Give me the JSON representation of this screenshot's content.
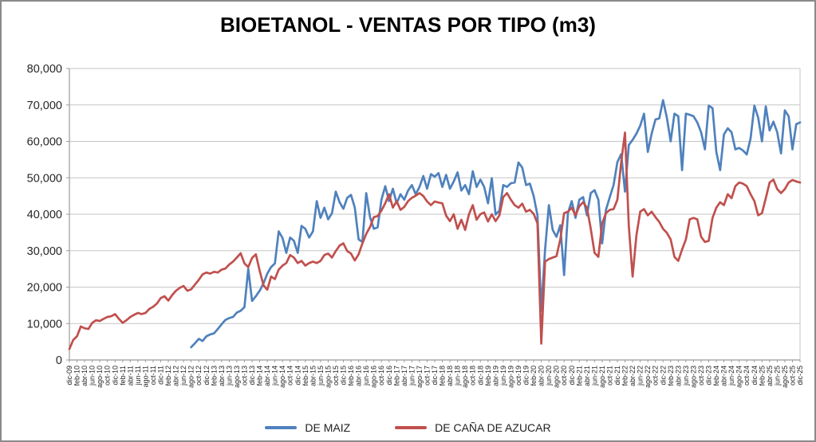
{
  "title": "BIOETANOL - VENTAS POR TIPO (m3)",
  "legend": [
    {
      "label": "DE MAIZ",
      "color": "#4F81BD"
    },
    {
      "label": "DE CAÑA DE AZUCAR",
      "color": "#C0504D"
    }
  ],
  "colors": {
    "maiz": "#4F81BD",
    "cana": "#C0504D",
    "gridline": "#C6C6C6",
    "axis": "#9B9B9B",
    "tick_text": "#262626"
  },
  "y_axis": {
    "min": 0,
    "max": 80000,
    "step": 10000,
    "tick_labels": [
      "0",
      "10,000",
      "20,000",
      "30,000",
      "40,000",
      "50,000",
      "60,000",
      "70,000",
      "80,000"
    ]
  },
  "x_axis": {
    "tick_labels": [
      "dic-09",
      "feb-10",
      "abr-10",
      "jun-10",
      "ago-10",
      "oct-10",
      "dic-10",
      "feb-11",
      "abr-11",
      "jun-11",
      "ago-11",
      "oct-11",
      "dic-11",
      "feb-12",
      "abr-12",
      "jun-12",
      "ago-12",
      "oct-12",
      "dic-12",
      "feb-13",
      "abr-13",
      "jun-13",
      "ago-13",
      "oct-13",
      "dic-13",
      "feb-14",
      "abr-14",
      "jun-14",
      "ago-14",
      "oct-14",
      "dic-14",
      "feb-15",
      "abr-15",
      "jun-15",
      "ago-15",
      "oct-15",
      "dic-15",
      "feb-16",
      "abr-16",
      "jun-16",
      "ago-16",
      "oct-16",
      "dic-16",
      "feb-17",
      "abr-17",
      "jun-17",
      "ago-17",
      "oct-17",
      "dic-17",
      "feb-18",
      "abr-18",
      "jun-18",
      "ago-18",
      "oct-18",
      "dic-18",
      "feb-19",
      "abr-19",
      "jun-19",
      "ago-19",
      "oct-19",
      "dic-19",
      "feb-20",
      "abr-20",
      "jun-20",
      "ago-20",
      "oct-20",
      "dic-20",
      "feb-21",
      "abr-21",
      "jun-21",
      "ago-21",
      "oct-21",
      "dic-21",
      "feb-22",
      "abr-22",
      "jun-22",
      "ago-22",
      "oct-22",
      "dic-22",
      "feb-23",
      "abr-23",
      "jun-23",
      "ago-23",
      "oct-23",
      "dic-23",
      "feb-24",
      "abr-24",
      "jun-24",
      "ago-24",
      "oct-24",
      "dic-24",
      "feb-25",
      "abr-25",
      "jun-25",
      "ago-25",
      "oct-25",
      "dic-25"
    ],
    "months_per_tick": 2,
    "total_months": 193
  },
  "chart_data": {
    "type": "line",
    "title": "BIOETANOL - VENTAS POR TIPO (m3)",
    "xlabel": "",
    "ylabel": "",
    "ylim": [
      0,
      80000
    ],
    "grid": true,
    "legend_position": "bottom",
    "x_start": "dic-09",
    "x_end": "dic-25",
    "x_interval": "monthly",
    "series": [
      {
        "name": "DE MAIZ",
        "color": "#4F81BD",
        "start_index": 32,
        "start_month": "ago-12",
        "values": [
          3500,
          4600,
          5800,
          5200,
          6500,
          7000,
          7300,
          8500,
          9800,
          11000,
          11500,
          11800,
          13000,
          13500,
          14500,
          25000,
          16200,
          17500,
          19000,
          21000,
          23700,
          25500,
          26500,
          35300,
          33500,
          29400,
          33600,
          32700,
          29400,
          36800,
          36000,
          33600,
          35300,
          43600,
          39000,
          41800,
          38600,
          40300,
          46200,
          43300,
          41500,
          44500,
          45300,
          41800,
          33100,
          32400,
          45800,
          39200,
          36000,
          36400,
          44000,
          47700,
          43600,
          47000,
          43000,
          45500,
          44000,
          46500,
          48000,
          45500,
          47500,
          50500,
          47000,
          51000,
          50300,
          51300,
          47500,
          50800,
          47000,
          49000,
          51500,
          46500,
          48000,
          45500,
          51800,
          47500,
          49500,
          47500,
          43000,
          49900,
          39900,
          41000,
          48000,
          47500,
          48500,
          48700,
          54200,
          52800,
          48000,
          48400,
          45000,
          39700,
          13500,
          30300,
          42500,
          35700,
          33800,
          37000,
          23300,
          40300,
          43600,
          39000,
          44000,
          44700,
          39700,
          45800,
          46600,
          44000,
          32000,
          41200,
          44700,
          48000,
          54300,
          56500,
          46200,
          59000,
          60400,
          62100,
          64300,
          67600,
          57100,
          62100,
          66000,
          66300,
          71300,
          66500,
          60000,
          67600,
          66900,
          52100,
          67600,
          67300,
          66900,
          65200,
          62500,
          57800,
          69800,
          69100,
          57100,
          52100,
          61900,
          63600,
          62500,
          57800,
          58200,
          57500,
          56400,
          60800,
          69800,
          66500,
          60000,
          69600,
          63000,
          65400,
          62500,
          56700,
          68500,
          66900,
          57800,
          64700,
          65200
        ]
      },
      {
        "name": "DE CAÑA DE AZUCAR",
        "color": "#C0504D",
        "start_index": 0,
        "start_month": "dic-09",
        "values": [
          3000,
          5500,
          6500,
          9200,
          8700,
          8500,
          10200,
          10900,
          10700,
          11300,
          11800,
          12000,
          12600,
          11300,
          10200,
          10900,
          11800,
          12400,
          12900,
          12600,
          12900,
          14000,
          14600,
          15500,
          17000,
          17500,
          16300,
          17800,
          19000,
          19800,
          20300,
          19000,
          19400,
          20700,
          22000,
          23500,
          24000,
          23700,
          24200,
          24000,
          24800,
          25100,
          26200,
          27000,
          28100,
          29300,
          26500,
          25500,
          28000,
          29000,
          24500,
          20500,
          19300,
          22900,
          22200,
          24800,
          25900,
          26600,
          28800,
          28100,
          26600,
          27200,
          25900,
          26600,
          27000,
          26600,
          27200,
          28800,
          29200,
          28100,
          29900,
          31400,
          32000,
          29900,
          29200,
          27300,
          29000,
          32000,
          34600,
          36500,
          39200,
          39500,
          41000,
          43000,
          45500,
          41800,
          43600,
          41200,
          42000,
          43600,
          44500,
          45100,
          45800,
          45000,
          43500,
          42500,
          43500,
          43200,
          43000,
          39600,
          38100,
          40000,
          36000,
          38500,
          35700,
          40000,
          42500,
          38500,
          40000,
          40500,
          38000,
          40000,
          38100,
          39700,
          44700,
          45800,
          44000,
          42500,
          41800,
          42900,
          40700,
          41200,
          40100,
          37500,
          4500,
          27000,
          27700,
          28100,
          28500,
          33100,
          40300,
          40700,
          41800,
          39700,
          42200,
          43300,
          41800,
          36000,
          29400,
          28300,
          37500,
          40300,
          41200,
          41400,
          44000,
          54300,
          62400,
          36800,
          22900,
          34200,
          40700,
          41400,
          39700,
          40700,
          39200,
          37900,
          36000,
          34900,
          33100,
          28300,
          27200,
          30300,
          33100,
          38600,
          39000,
          38600,
          33800,
          32400,
          32700,
          39000,
          41800,
          43300,
          42500,
          45500,
          44400,
          47700,
          48700,
          48400,
          47700,
          45500,
          43600,
          39700,
          40300,
          44400,
          48700,
          49500,
          46900,
          45800,
          46900,
          48700,
          49400,
          49000,
          48700
        ]
      }
    ]
  }
}
